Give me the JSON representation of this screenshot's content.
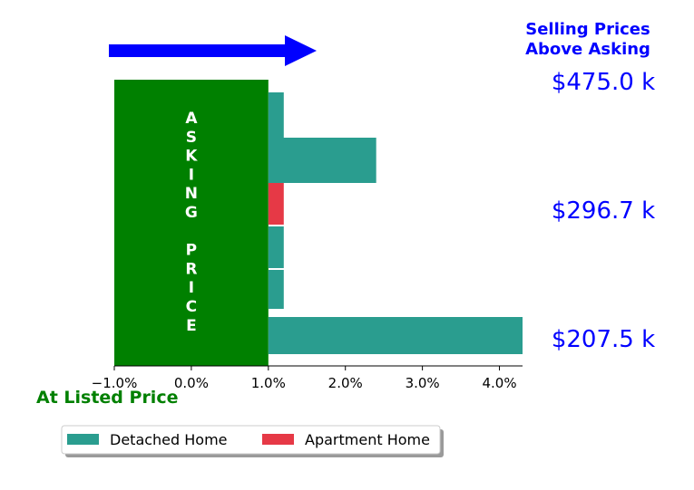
{
  "chart_data": {
    "type": "bar",
    "orientation": "horizontal",
    "xlim": [
      -1.0,
      4.3
    ],
    "x_ticks": [
      -1.0,
      0.0,
      1.0,
      2.0,
      3.0,
      4.0
    ],
    "x_tick_labels": [
      "−1.0%",
      "0.0%",
      "1.0%",
      "2.0%",
      "3.0%",
      "4.0%"
    ],
    "bars": [
      {
        "series": "Detached Home",
        "value": 1.2
      },
      {
        "series": "Detached Home",
        "value": 2.4
      },
      {
        "series": "Apartment Home",
        "value": 1.2
      },
      {
        "series": "Detached Home",
        "value": 1.2
      },
      {
        "series": "Detached Home",
        "value": 1.2
      },
      {
        "series": "Detached Home",
        "value": 4.3
      }
    ],
    "series": [
      {
        "name": "Detached Home",
        "color": "#2a9d8f"
      },
      {
        "name": "Apartment Home",
        "color": "#e63946"
      }
    ],
    "asking_band": {
      "x_start": -1.0,
      "x_end": 1.0,
      "color": "#008000",
      "label": "ASKING PRICE"
    },
    "price_labels": [
      "$475.0 k",
      "$296.7 k",
      "$207.5 k"
    ],
    "title_right": [
      "Selling Prices",
      "Above Asking"
    ],
    "bottom_label": "At Listed Price",
    "arrow_color": "#0000ff",
    "text_color_blue": "#0000ff",
    "legend_placement": "lower-left"
  }
}
